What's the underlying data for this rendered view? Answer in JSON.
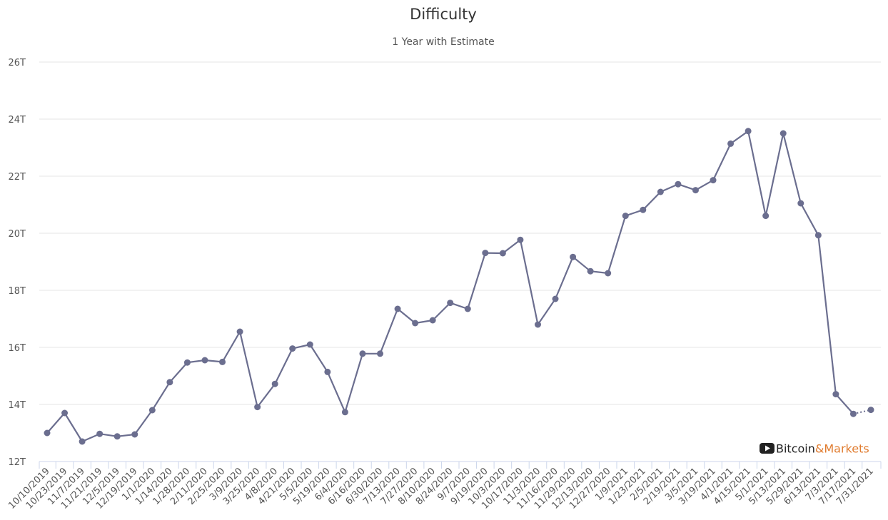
{
  "chart_data": {
    "type": "line",
    "title": "Difficulty",
    "subtitle": "1 Year with Estimate",
    "xlabel": "",
    "ylabel": "",
    "ylim": [
      12,
      26
    ],
    "yticks": [
      12,
      14,
      16,
      18,
      20,
      22,
      24,
      26
    ],
    "ytick_labels": [
      "12T",
      "14T",
      "16T",
      "18T",
      "20T",
      "22T",
      "24T",
      "26T"
    ],
    "grid": true,
    "legend": "none",
    "x": [
      "10/10/2019",
      "10/23/2019",
      "11/7/2019",
      "11/21/2019",
      "12/5/2019",
      "12/19/2019",
      "1/1/2020",
      "1/14/2020",
      "1/28/2020",
      "2/11/2020",
      "2/25/2020",
      "3/9/2020",
      "3/25/2020",
      "4/8/2020",
      "4/21/2020",
      "5/5/2020",
      "5/19/2020",
      "6/4/2020",
      "6/16/2020",
      "6/30/2020",
      "7/13/2020",
      "7/27/2020",
      "8/10/2020",
      "8/24/2020",
      "9/7/2020",
      "9/19/2020",
      "10/3/2020",
      "10/17/2020",
      "11/3/2020",
      "11/16/2020",
      "11/29/2020",
      "12/13/2020",
      "12/27/2020",
      "1/9/2021",
      "1/23/2021",
      "2/5/2021",
      "2/19/2021",
      "3/5/2021",
      "3/19/2021",
      "4/1/2021",
      "4/15/2021",
      "5/1/2021",
      "5/13/2021",
      "5/29/2021",
      "6/13/2021",
      "7/3/2021",
      "7/17/2021",
      "7/31/2021"
    ],
    "series": [
      {
        "values": [
          13.0,
          13.7,
          12.7,
          12.97,
          12.88,
          12.95,
          13.8,
          14.78,
          15.47,
          15.55,
          15.49,
          16.55,
          13.91,
          14.72,
          15.96,
          16.1,
          15.14,
          13.73,
          15.78,
          15.78,
          17.35,
          16.85,
          16.95,
          17.56,
          17.35,
          19.31,
          19.3,
          19.77,
          16.8,
          17.7,
          19.17,
          18.67,
          18.6,
          20.61,
          20.82,
          21.45,
          21.72,
          21.51,
          21.86,
          23.14,
          23.58,
          20.61,
          23.5,
          21.05,
          19.93,
          14.36,
          13.67,
          13.81
        ],
        "estimate_from_index": 46
      }
    ],
    "color": "#6b6e8f"
  },
  "watermark": {
    "icon": "youtube-play-icon",
    "brand_first": "Bitcoin",
    "brand_second": "&Markets",
    "brand_first_color": "#222222",
    "brand_second_color": "#e07b2e"
  }
}
